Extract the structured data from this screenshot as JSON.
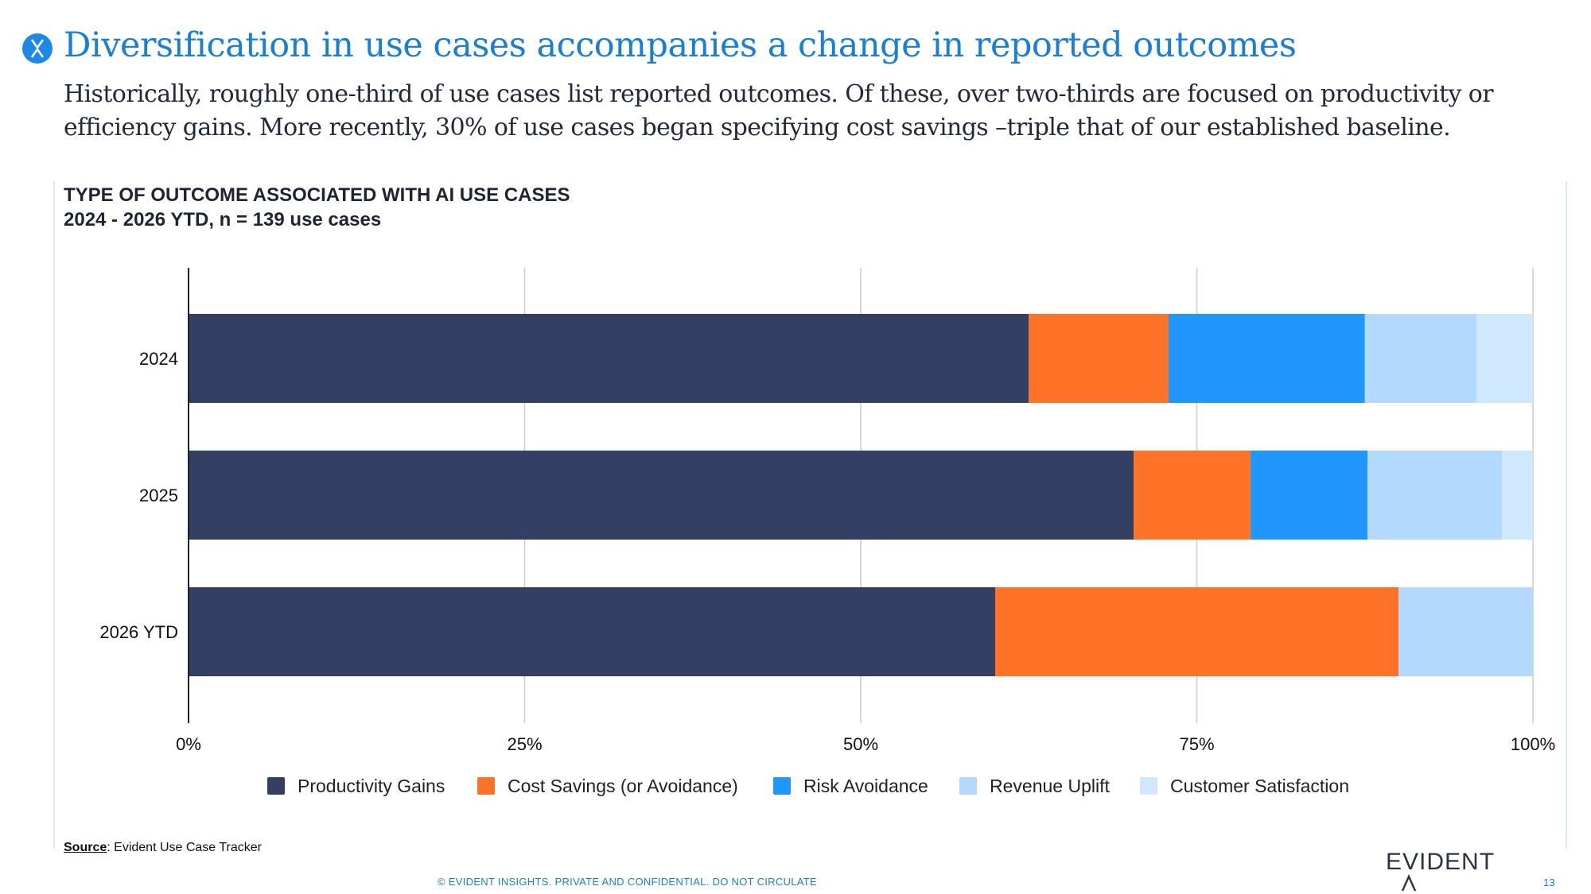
{
  "header": {
    "title": "Diversification in use cases accompanies a change in reported outcomes",
    "subtitle": "Historically, roughly one-third of use cases list reported outcomes. Of these, over two-thirds are focused on productivity or efficiency gains. More recently, 30% of use cases began specifying cost savings –triple that of our established baseline."
  },
  "chart_data": {
    "type": "bar",
    "orientation": "horizontal",
    "stacked": true,
    "title": "TYPE OF OUTCOME ASSOCIATED WITH AI USE CASES",
    "subtitle": "2024 - 2026 YTD, n = 139 use cases",
    "categories": [
      "2024",
      "2025",
      "2026 YTD"
    ],
    "x_ticks": [
      "0%",
      "25%",
      "50%",
      "75%",
      "100%"
    ],
    "xlim": [
      0,
      100
    ],
    "grid": true,
    "legend_position": "bottom",
    "series": [
      {
        "name": "Productivity Gains",
        "color": "#334063",
        "values": [
          62.5,
          70.3,
          60.0
        ]
      },
      {
        "name": "Cost Savings (or Avoidance)",
        "color": "#ff7328",
        "values": [
          10.4,
          8.7,
          30.0
        ]
      },
      {
        "name": "Risk Avoidance",
        "color": "#2196fc",
        "values": [
          14.6,
          8.7,
          0
        ]
      },
      {
        "name": "Revenue Uplift",
        "color": "#b3dafe",
        "values": [
          8.3,
          10.0,
          10.0
        ]
      },
      {
        "name": "Customer Satisfaction",
        "color": "#d0e8fd",
        "values": [
          4.2,
          2.3,
          0
        ]
      }
    ]
  },
  "footer": {
    "source_label": "Source",
    "source_text": ": Evident Use Case Tracker",
    "confidential": "© EVIDENT INSIGHTS. PRIVATE AND CONFIDENTIAL. DO NOT CIRCULATE",
    "brand": "EVIDENT",
    "page": "13"
  },
  "icons": {
    "logo": "evident-logo-icon",
    "brand_mark": "caret-up-icon"
  },
  "colors": {
    "accent": "#1a7fd4",
    "text_dark": "#222a3a"
  }
}
